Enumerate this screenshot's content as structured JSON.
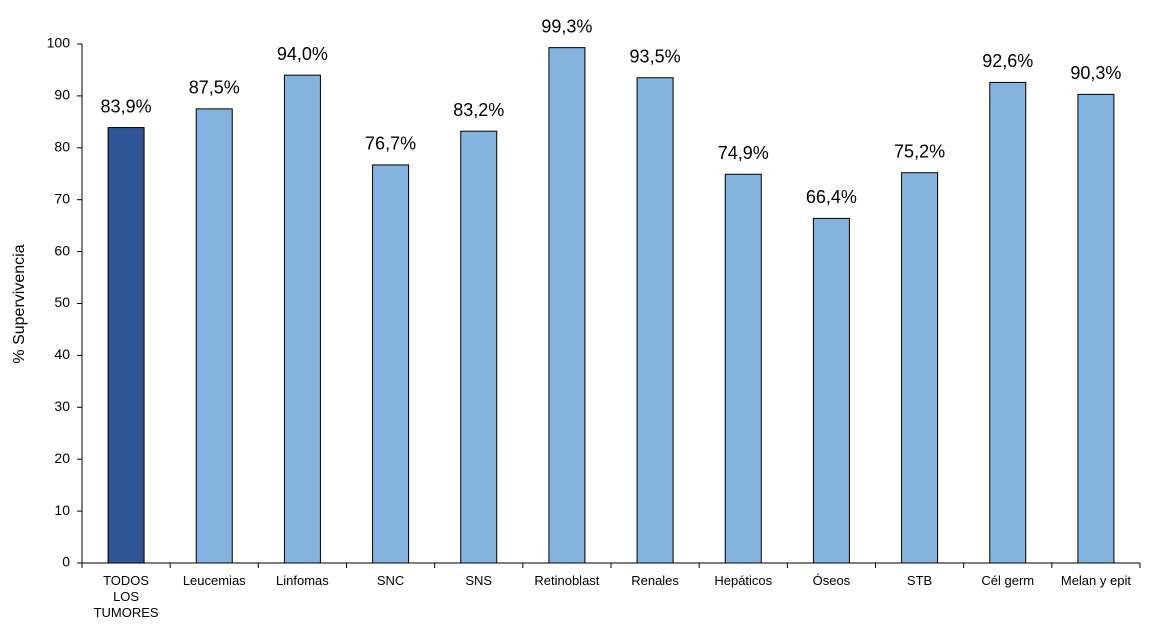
{
  "chart_data": {
    "type": "bar",
    "ylabel": "% Supervivencia",
    "categories": [
      "TODOS LOS TUMORES",
      "Leucemias",
      "Linfomas",
      "SNC",
      "SNS",
      "Retinoblast",
      "Renales",
      "Hepáticos",
      "Óseos",
      "STB",
      "Cél germ",
      "Melan y epit"
    ],
    "values": [
      83.9,
      87.5,
      94.0,
      76.7,
      83.2,
      99.3,
      93.5,
      74.9,
      66.4,
      75.2,
      92.6,
      90.3
    ],
    "value_labels": [
      "83,9%",
      "87,5%",
      "94,0%",
      "76,7%",
      "83,2%",
      "99,3%",
      "93,5%",
      "74,9%",
      "66,4%",
      "75,2%",
      "92,6%",
      "90,3%"
    ],
    "colors": [
      "#2f5496",
      "#85b3e0",
      "#85b3e0",
      "#85b3e0",
      "#85b3e0",
      "#85b3e0",
      "#85b3e0",
      "#85b3e0",
      "#85b3e0",
      "#85b3e0",
      "#85b3e0",
      "#85b3e0"
    ],
    "ylim": [
      0,
      100
    ],
    "yticks": [
      0,
      10,
      20,
      30,
      40,
      50,
      60,
      70,
      80,
      90,
      100
    ],
    "grid": false
  }
}
